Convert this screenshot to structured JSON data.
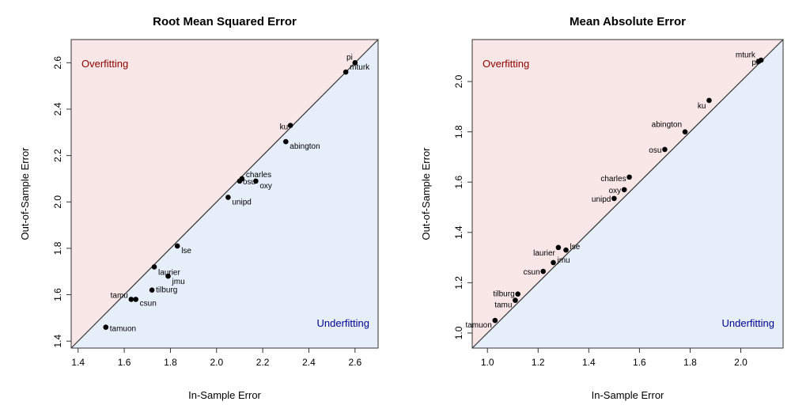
{
  "colors": {
    "over_fill": "#f9e6e6",
    "under_fill": "#e6eefa",
    "over_text": "#8b0000",
    "under_text": "#00008b",
    "point": "#000000"
  },
  "chart_data": [
    {
      "type": "scatter",
      "title": "Root Mean Squared Error",
      "xlabel": "In-Sample Error",
      "ylabel": "Out-of-Sample Error",
      "xlim": [
        1.37,
        2.7
      ],
      "ylim": [
        1.37,
        2.7
      ],
      "xticks": [
        "1.4",
        "1.6",
        "1.8",
        "2.0",
        "2.2",
        "2.4",
        "2.6"
      ],
      "yticks": [
        "1.4",
        "1.6",
        "1.8",
        "2.0",
        "2.2",
        "2.4",
        "2.6"
      ],
      "region_labels": {
        "upper": "Overfitting",
        "lower": "Underfitting"
      },
      "reference_line": "y = x",
      "points": [
        {
          "label": "pi",
          "x": 2.6,
          "y": 2.6
        },
        {
          "label": "mturk",
          "x": 2.56,
          "y": 2.56
        },
        {
          "label": "ku",
          "x": 2.32,
          "y": 2.33
        },
        {
          "label": "abington",
          "x": 2.3,
          "y": 2.26
        },
        {
          "label": "charles",
          "x": 2.11,
          "y": 2.1
        },
        {
          "label": "osu",
          "x": 2.1,
          "y": 2.09
        },
        {
          "label": "oxy",
          "x": 2.17,
          "y": 2.09
        },
        {
          "label": "unipd",
          "x": 2.05,
          "y": 2.02
        },
        {
          "label": "lse",
          "x": 1.83,
          "y": 1.81
        },
        {
          "label": "laurier",
          "x": 1.73,
          "y": 1.72
        },
        {
          "label": "jmu",
          "x": 1.79,
          "y": 1.68
        },
        {
          "label": "tilburg",
          "x": 1.72,
          "y": 1.62
        },
        {
          "label": "tamu",
          "x": 1.63,
          "y": 1.58
        },
        {
          "label": "csun",
          "x": 1.65,
          "y": 1.58
        },
        {
          "label": "tamuon",
          "x": 1.52,
          "y": 1.46
        }
      ]
    },
    {
      "type": "scatter",
      "title": "Mean Absolute Error",
      "xlabel": "In-Sample Error",
      "ylabel": "Out-of-Sample Error",
      "xlim": [
        0.94,
        2.167
      ],
      "ylim": [
        0.94,
        2.167
      ],
      "xticks": [
        "1.0",
        "1.2",
        "1.4",
        "1.6",
        "1.8",
        "2.0"
      ],
      "yticks": [
        "1.0",
        "1.2",
        "1.4",
        "1.6",
        "1.8",
        "2.0"
      ],
      "region_labels": {
        "upper": "Overfitting",
        "lower": "Underfitting"
      },
      "reference_line": "y = x",
      "points": [
        {
          "label": "mturk",
          "x": 2.07,
          "y": 2.08
        },
        {
          "label": "pi",
          "x": 2.08,
          "y": 2.085
        },
        {
          "label": "ku",
          "x": 1.875,
          "y": 1.925
        },
        {
          "label": "abington",
          "x": 1.78,
          "y": 1.8
        },
        {
          "label": "osu",
          "x": 1.7,
          "y": 1.73
        },
        {
          "label": "charles",
          "x": 1.56,
          "y": 1.62
        },
        {
          "label": "oxy",
          "x": 1.54,
          "y": 1.57
        },
        {
          "label": "unipd",
          "x": 1.5,
          "y": 1.535
        },
        {
          "label": "lse",
          "x": 1.31,
          "y": 1.33
        },
        {
          "label": "laurier",
          "x": 1.28,
          "y": 1.34
        },
        {
          "label": "jmu",
          "x": 1.26,
          "y": 1.28
        },
        {
          "label": "csun",
          "x": 1.22,
          "y": 1.245
        },
        {
          "label": "tilburg",
          "x": 1.12,
          "y": 1.155
        },
        {
          "label": "tamu",
          "x": 1.11,
          "y": 1.13
        },
        {
          "label": "tamuon",
          "x": 1.03,
          "y": 1.05
        }
      ]
    }
  ]
}
